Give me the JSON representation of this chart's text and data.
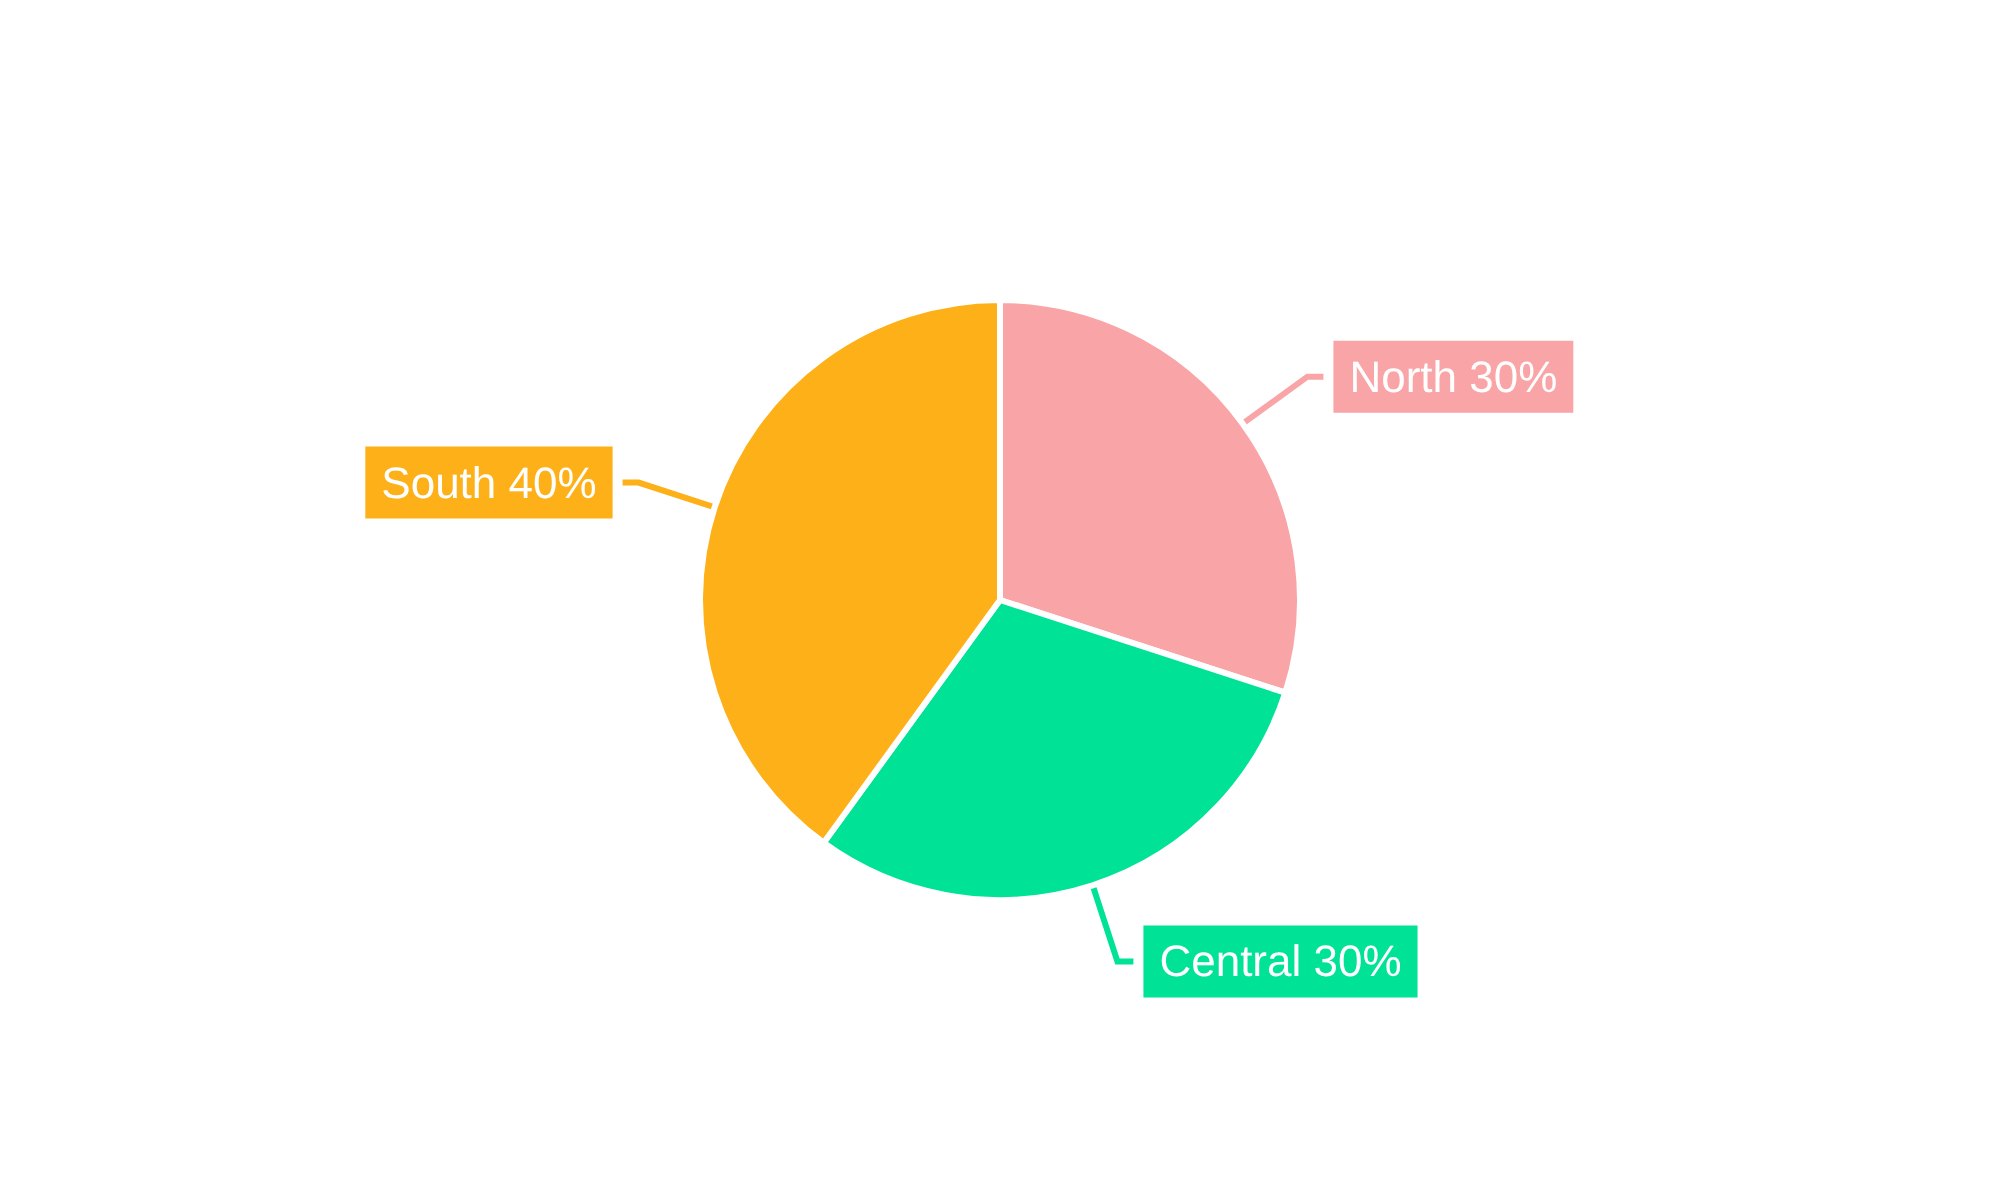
{
  "chart_data": {
    "type": "pie",
    "categories": [
      "North",
      "Central",
      "South"
    ],
    "values": [
      30,
      30,
      40
    ],
    "colors": [
      "#f9a4a6",
      "#00e396",
      "#feb019"
    ],
    "value_labels": [
      "30%",
      "30%",
      "40%"
    ],
    "legend": false
  }
}
